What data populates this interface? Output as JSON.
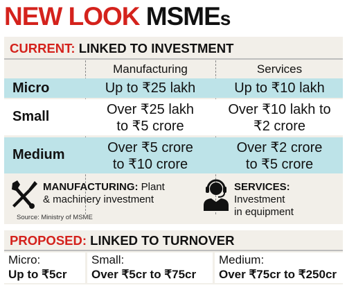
{
  "title": {
    "part1": "NEW LOOK",
    "part2": "MSME",
    "part3": "s"
  },
  "current": {
    "label": "CURRENT:",
    "heading": "LINKED TO INVESTMENT",
    "columns": [
      "Manufacturing",
      "Services"
    ],
    "rows": [
      {
        "name": "Micro",
        "manufacturing": [
          "Up to ₹25 lakh"
        ],
        "services": [
          "Up to ₹10 lakh"
        ]
      },
      {
        "name": "Small",
        "manufacturing": [
          "Over ₹25 lakh",
          "to ₹5 crore"
        ],
        "services": [
          "Over ₹10 lakh to",
          "₹2 crore"
        ]
      },
      {
        "name": "Medium",
        "manufacturing": [
          "Over ₹5 crore",
          "to ₹10 crore"
        ],
        "services": [
          "Over ₹2 crore",
          "to ₹5 crore"
        ]
      }
    ]
  },
  "legend": {
    "manufacturing": {
      "icon": "wrench-screwdriver-icon",
      "label": "MANUFACTURING:",
      "line1_rest": " Plant",
      "line2": "& machinery investment"
    },
    "services": {
      "icon": "headset-person-icon",
      "label": "SERVICES:",
      "line1_rest": " Investment",
      "line2": "in equipment"
    }
  },
  "source": "Source: Ministry of MSME",
  "proposed": {
    "label": "PROPOSED:",
    "heading": "LINKED TO TURNOVER",
    "items": [
      {
        "label": "Micro:",
        "value": "Up to ₹5cr"
      },
      {
        "label": "Small:",
        "value": "Over ₹5cr to ₹75cr"
      },
      {
        "label": "Medium:",
        "value": "Over ₹75cr to ₹250cr"
      }
    ]
  },
  "colors": {
    "accent": "#d4221c",
    "teal_row": "#bde3e8",
    "panel": "#f2efe9"
  }
}
